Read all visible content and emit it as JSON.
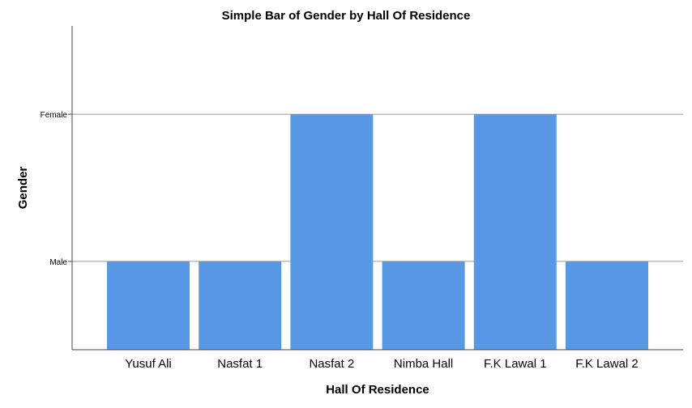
{
  "chart_data": {
    "type": "bar",
    "title": "Simple Bar of Gender by Hall Of Residence",
    "xlabel": "Hall Of Residence",
    "ylabel": "Gender",
    "categories": [
      "Yusuf Ali",
      "Nasfat 1",
      "Nasfat 2",
      "Nimba Hall",
      "F.K Lawal 1",
      "F.K Lawal 2"
    ],
    "values": [
      1,
      1,
      2,
      1,
      2,
      1
    ],
    "y_tick_values": [
      1,
      2
    ],
    "y_tick_labels": [
      "Male",
      "Female"
    ],
    "ylim": [
      0.4,
      2.6
    ],
    "grid": "horizontal",
    "bar_color": "#5898e5"
  }
}
